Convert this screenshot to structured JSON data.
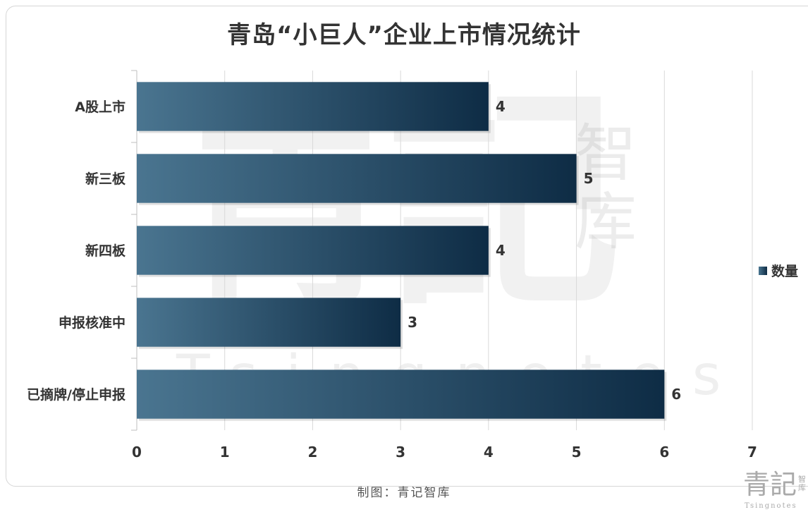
{
  "chart_data": {
    "type": "bar",
    "orientation": "horizontal",
    "title": "青岛“小巨人”企业上市情况统计",
    "categories": [
      "A股上市",
      "新三板",
      "新四板",
      "申报核准中",
      "已摘牌/停止申报"
    ],
    "series": [
      {
        "name": "数量",
        "values": [
          4,
          5,
          4,
          3,
          6
        ]
      }
    ],
    "x_ticks": [
      "0",
      "1",
      "2",
      "3",
      "4",
      "5",
      "6",
      "7"
    ],
    "xlim": [
      0,
      7
    ],
    "grid": true,
    "legend_position": "right",
    "bar_color_start": "#4a7590",
    "bar_color_end": "#0e2c45"
  },
  "footer": {
    "credit": "制图：青记智库"
  },
  "watermark": {
    "big": "青記",
    "side": "智库",
    "latin": "Tsingnotes"
  },
  "logo": {
    "main": "青記",
    "small": "智库",
    "latin": "Tsingnotes"
  }
}
